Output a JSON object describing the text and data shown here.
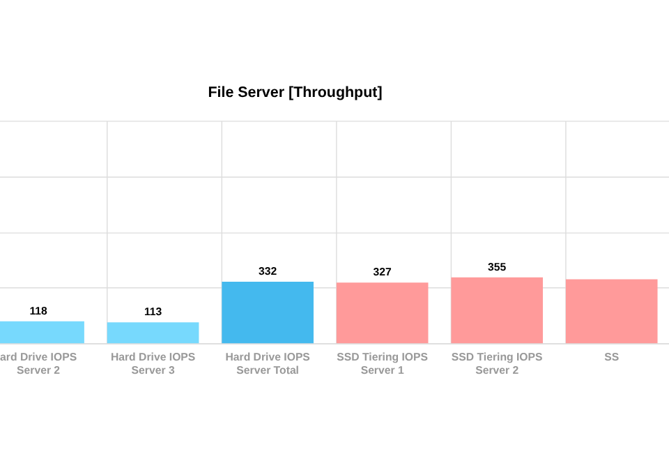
{
  "chart_data": {
    "type": "bar",
    "title": "File Server [Throughput]",
    "categories": [
      "ard Drive IOPS\nServer 2",
      "Hard Drive IOPS\nServer 3",
      "Hard Drive IOPS\nServer Total",
      "SSD Tiering IOPS\nServer 1",
      "SSD Tiering IOPS\nServer 2",
      "SS"
    ],
    "values": [
      118,
      113,
      332,
      327,
      355,
      345
    ],
    "colors": [
      "#77d9fd",
      "#77d9fd",
      "#44b9ee",
      "#ff9a9a",
      "#ff9a9a",
      "#ff9a9a"
    ],
    "value_labels": [
      "118",
      "113",
      "332",
      "327",
      "355",
      null
    ],
    "ylim": [
      0,
      1200
    ],
    "yticks": [
      {
        "value": 0,
        "label": null
      },
      {
        "value": 300,
        "label": null
      },
      {
        "value": 600,
        "label": null
      },
      {
        "value": 900,
        "label": null
      },
      {
        "value": 1200,
        "label": null
      }
    ],
    "grid": true
  }
}
